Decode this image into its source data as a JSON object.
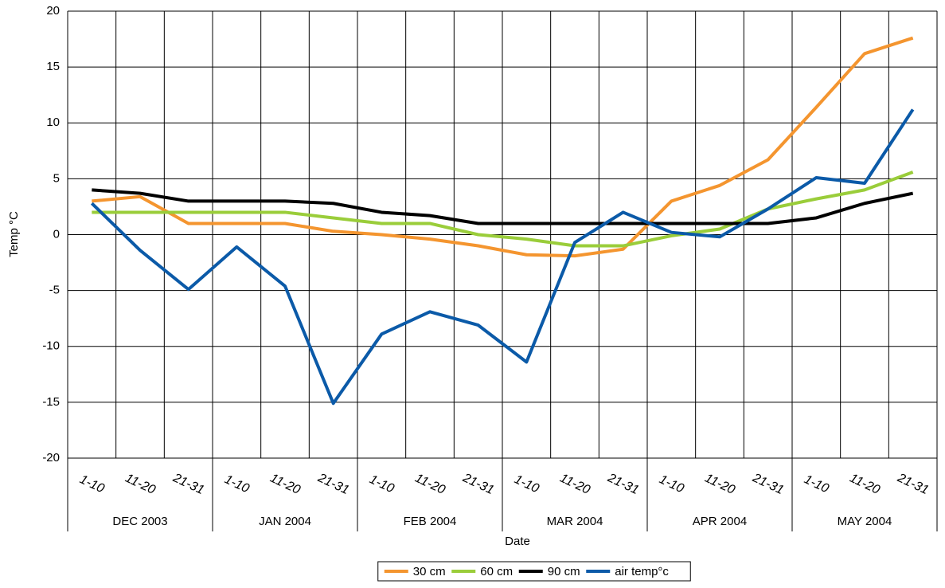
{
  "chart_data": {
    "type": "line",
    "x_label": "Date",
    "y_label": "Temp °C",
    "categories": [
      "1-10",
      "11-20",
      "21-31",
      "1-10",
      "11-20",
      "21-31",
      "1-10",
      "11-20",
      "21-31",
      "1-10",
      "11-20",
      "21-31",
      "1-10",
      "11-20",
      "21-31",
      "1-10",
      "11-20",
      "21-31"
    ],
    "groups": [
      "DEC 2003",
      "JAN 2004",
      "FEB 2004",
      "MAR 2004",
      "APR 2004",
      "MAY 2004"
    ],
    "series": [
      {
        "name": "30 cm",
        "color": "#f4952f",
        "values": [
          3.0,
          3.4,
          1.0,
          1.0,
          1.0,
          0.3,
          0.0,
          -0.4,
          -1.0,
          -1.8,
          -1.9,
          -1.3,
          3.0,
          4.4,
          6.7,
          11.4,
          16.2,
          17.6
        ]
      },
      {
        "name": "60 cm",
        "color": "#9acd3a",
        "values": [
          2.0,
          2.0,
          2.0,
          2.0,
          2.0,
          1.5,
          1.0,
          1.0,
          0.0,
          -0.4,
          -1.0,
          -1.0,
          -0.1,
          0.5,
          2.3,
          3.2,
          4.0,
          5.6
        ]
      },
      {
        "name": "90 cm",
        "color": "#000000",
        "values": [
          4.0,
          3.7,
          3.0,
          3.0,
          3.0,
          2.8,
          2.0,
          1.7,
          1.0,
          1.0,
          1.0,
          1.0,
          1.0,
          1.0,
          1.0,
          1.5,
          2.8,
          3.7
        ]
      },
      {
        "name": "air temp°c",
        "color": "#0b5aa8",
        "values": [
          2.8,
          -1.4,
          -4.9,
          -1.1,
          -4.6,
          -15.1,
          -8.9,
          -6.9,
          -8.1,
          -11.4,
          -0.7,
          2.0,
          0.2,
          -0.2,
          2.3,
          5.1,
          4.6,
          11.2
        ]
      }
    ],
    "ylim": [
      -20,
      20
    ],
    "yticks": [
      -20,
      -15,
      -10,
      -5,
      0,
      5,
      10,
      15,
      20
    ],
    "grid": true,
    "legend": "bottom"
  }
}
